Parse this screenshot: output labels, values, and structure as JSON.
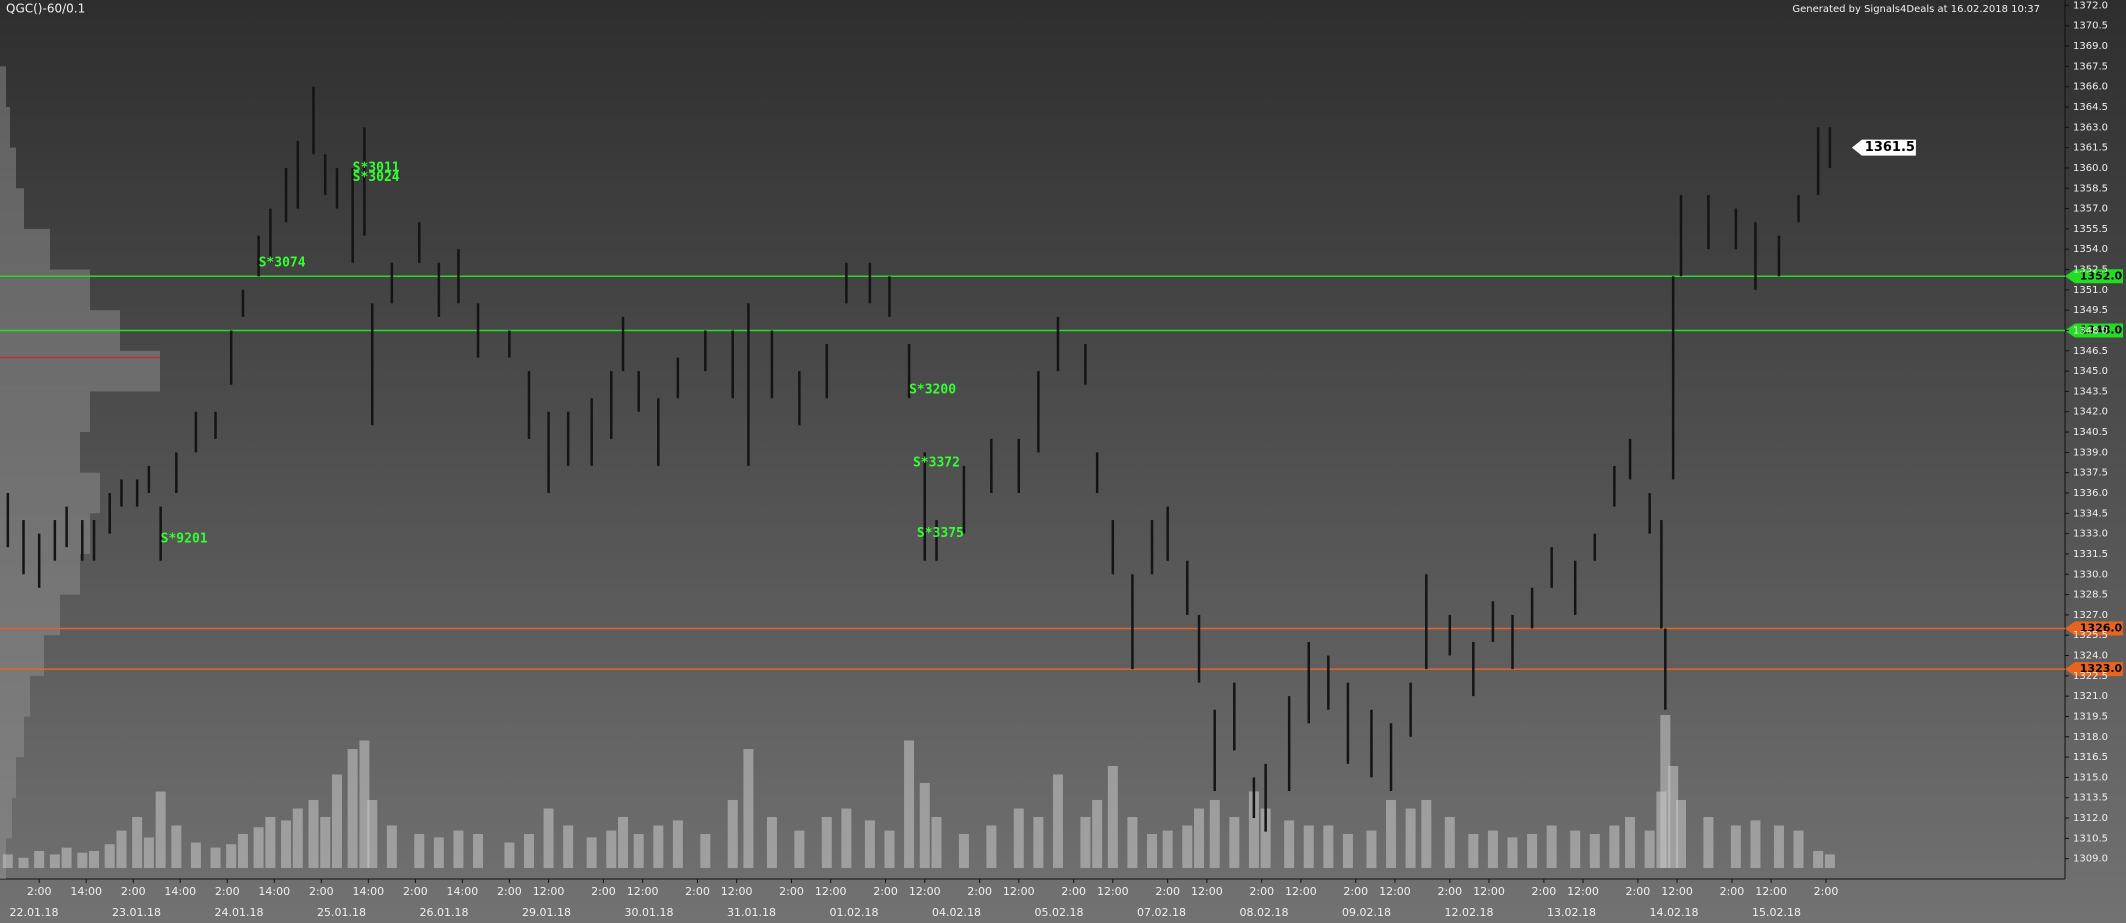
{
  "chart_data": {
    "type": "ohlc",
    "title": "QGC()-60/0.1",
    "subtitle": "Generated by Signals4Deals at 16.02.2018 10:37",
    "bar_color": "#141414",
    "volume_color": "#c8c8c8",
    "profile_color": "#9a9a9a",
    "annotation_color": "#33ff33",
    "xlim": [
      -10,
      517
    ],
    "ylim": [
      1307.5,
      1372.4
    ],
    "volume_lim": [
      0,
      100
    ],
    "profile_lim": [
      0,
      100
    ],
    "bars": {
      "x": [
        -8,
        -4,
        0,
        4,
        7,
        11,
        14,
        18,
        21,
        25,
        28,
        31,
        35,
        40,
        45,
        49,
        52,
        56,
        59,
        63,
        66,
        70,
        73,
        76,
        80,
        83,
        85,
        90,
        97,
        102,
        107,
        112,
        120,
        125,
        130,
        135,
        141,
        146,
        149,
        153,
        158,
        163,
        170,
        177,
        181,
        187,
        194,
        201,
        206,
        212,
        217,
        222,
        226,
        229,
        236,
        243,
        250,
        255,
        260,
        267,
        270,
        274,
        279,
        284,
        288,
        293,
        296,
        300,
        305,
        310,
        313,
        319,
        324,
        329,
        334,
        340,
        345,
        350,
        354,
        360,
        366,
        371,
        376,
        381,
        386,
        392,
        397,
        402,
        406,
        411,
        414,
        415,
        417,
        419,
        426,
        433,
        438,
        444,
        449,
        454,
        457
      ],
      "low": [
        1332,
        1330,
        1329,
        1331,
        1332,
        1331,
        1331,
        1333,
        1335,
        1335,
        1336,
        1331,
        1336,
        1339,
        1340,
        1344,
        1349,
        1352,
        1353,
        1356,
        1357,
        1361,
        1358,
        1357,
        1353,
        1355,
        1341,
        1350,
        1353,
        1349,
        1350,
        1346,
        1346,
        1340,
        1336,
        1338,
        1338,
        1340,
        1345,
        1342,
        1338,
        1343,
        1345,
        1343,
        1338,
        1343,
        1341,
        1343,
        1350,
        1350,
        1349,
        1343,
        1331,
        1331,
        1333,
        1336,
        1336,
        1339,
        1345,
        1344,
        1336,
        1330,
        1323,
        1330,
        1331,
        1327,
        1322,
        1314,
        1317,
        1312,
        1311,
        1314,
        1319,
        1320,
        1316,
        1315,
        1314,
        1318,
        1323,
        1324,
        1321,
        1325,
        1323,
        1326,
        1329,
        1327,
        1331,
        1335,
        1337,
        1333,
        1326,
        1320,
        1337,
        1352,
        1354,
        1354,
        1351,
        1352,
        1356,
        1358,
        1360
      ],
      "high": [
        1336,
        1334,
        1333,
        1334,
        1335,
        1334,
        1334,
        1336,
        1337,
        1337,
        1338,
        1335,
        1339,
        1342,
        1342,
        1348,
        1351,
        1355,
        1357,
        1360,
        1362,
        1366,
        1361,
        1360,
        1360,
        1363,
        1350,
        1353,
        1356,
        1353,
        1354,
        1350,
        1348,
        1345,
        1342,
        1342,
        1343,
        1345,
        1349,
        1345,
        1343,
        1346,
        1348,
        1348,
        1350,
        1348,
        1345,
        1347,
        1353,
        1353,
        1352,
        1347,
        1339,
        1334,
        1338,
        1340,
        1340,
        1345,
        1349,
        1347,
        1339,
        1334,
        1330,
        1334,
        1335,
        1331,
        1327,
        1320,
        1322,
        1315,
        1316,
        1321,
        1325,
        1324,
        1322,
        1320,
        1319,
        1322,
        1330,
        1327,
        1325,
        1328,
        1327,
        1329,
        1332,
        1331,
        1333,
        1338,
        1340,
        1336,
        1334,
        1326,
        1352,
        1358,
        1358,
        1357,
        1356,
        1355,
        1358,
        1363,
        1363
      ],
      "volume": [
        8,
        6,
        10,
        8,
        12,
        9,
        10,
        14,
        22,
        30,
        18,
        45,
        25,
        15,
        12,
        14,
        20,
        24,
        30,
        28,
        35,
        40,
        30,
        55,
        70,
        75,
        40,
        25,
        20,
        18,
        22,
        20,
        15,
        20,
        35,
        25,
        18,
        22,
        30,
        20,
        25,
        28,
        20,
        40,
        70,
        30,
        22,
        30,
        35,
        28,
        22,
        75,
        50,
        30,
        20,
        25,
        35,
        30,
        55,
        30,
        40,
        60,
        30,
        20,
        22,
        25,
        35,
        40,
        30,
        45,
        35,
        28,
        25,
        25,
        20,
        22,
        40,
        35,
        40,
        30,
        20,
        22,
        18,
        20,
        25,
        22,
        20,
        25,
        30,
        22,
        45,
        90,
        60,
        40,
        30,
        25,
        28,
        25,
        22,
        10,
        8
      ]
    },
    "profile": {
      "levels": [
        1309,
        1312,
        1315,
        1318,
        1321,
        1324,
        1327,
        1330,
        1333,
        1336,
        1339,
        1342,
        1345,
        1348,
        1351,
        1354,
        1357,
        1360,
        1363,
        1366
      ],
      "values": [
        3,
        6,
        8,
        12,
        15,
        22,
        30,
        40,
        45,
        50,
        40,
        45,
        80,
        60,
        45,
        25,
        12,
        8,
        5,
        3
      ]
    },
    "poc": {
      "value": 1346,
      "color": "#c03030"
    },
    "levels": [
      {
        "value": 1352,
        "label": "1352.0",
        "color": "#22dd22"
      },
      {
        "value": 1348,
        "label": "1348.0",
        "color": "#22dd22"
      },
      {
        "value": 1326,
        "label": "1326.0",
        "color": "#e8641e"
      },
      {
        "value": 1323,
        "label": "1323.0",
        "color": "#e8641e"
      }
    ],
    "last_price": 1361.5,
    "annotations": [
      {
        "text": "S*9201",
        "x": 31,
        "y": 1332.6
      },
      {
        "text": "S*3074",
        "x": 56,
        "y": 1353
      },
      {
        "text": "S*3011",
        "x": 80,
        "y": 1360
      },
      {
        "text": "S*3024",
        "x": 80,
        "y": 1359.3
      },
      {
        "text": "S*3200",
        "x": 222,
        "y": 1343.6
      },
      {
        "text": "S*3372",
        "x": 223,
        "y": 1338.2
      },
      {
        "text": "S*3375",
        "x": 224,
        "y": 1333
      }
    ],
    "xticks": [
      {
        "value": 0,
        "label": "2:00"
      },
      {
        "value": 12,
        "label": "14:00"
      },
      {
        "value": 24,
        "label": "2:00"
      },
      {
        "value": 36,
        "label": "14:00"
      },
      {
        "value": 48,
        "label": "2:00"
      },
      {
        "value": 60,
        "label": "14:00"
      },
      {
        "value": 72,
        "label": "2:00"
      },
      {
        "value": 84,
        "label": "14:00"
      },
      {
        "value": 96,
        "label": "2:00"
      },
      {
        "value": 108,
        "label": "14:00"
      },
      {
        "value": 120,
        "label": "2:00"
      },
      {
        "value": 130,
        "label": "12:00"
      },
      {
        "value": 144,
        "label": "2:00"
      },
      {
        "value": 154,
        "label": "12:00"
      },
      {
        "value": 168,
        "label": "2:00"
      },
      {
        "value": 178,
        "label": "12:00"
      },
      {
        "value": 192,
        "label": "2:00"
      },
      {
        "value": 202,
        "label": "12:00"
      },
      {
        "value": 216,
        "label": "2:00"
      },
      {
        "value": 226,
        "label": "12:00"
      },
      {
        "value": 240,
        "label": "2:00"
      },
      {
        "value": 250,
        "label": "12:00"
      },
      {
        "value": 264,
        "label": "2:00"
      },
      {
        "value": 274,
        "label": "12:00"
      },
      {
        "value": 288,
        "label": "2:00"
      },
      {
        "value": 298,
        "label": "12:00"
      },
      {
        "value": 312,
        "label": "2:00"
      },
      {
        "value": 322,
        "label": "12:00"
      },
      {
        "value": 336,
        "label": "2:00"
      },
      {
        "value": 346,
        "label": "12:00"
      },
      {
        "value": 360,
        "label": "2:00"
      },
      {
        "value": 370,
        "label": "12:00"
      },
      {
        "value": 384,
        "label": "2:00"
      },
      {
        "value": 394,
        "label": "12:00"
      },
      {
        "value": 408,
        "label": "2:00"
      },
      {
        "value": 418,
        "label": "12:00"
      },
      {
        "value": 432,
        "label": "2:00"
      },
      {
        "value": 442,
        "label": "12:00"
      },
      {
        "value": 456,
        "label": "2:00"
      }
    ],
    "dates": [
      "22.01.18",
      "23.01.18",
      "24.01.18",
      "25.01.18",
      "26.01.18",
      "29.01.18",
      "30.01.18",
      "31.01.18",
      "01.02.18",
      "04.02.18",
      "05.02.18",
      "07.02.18",
      "08.02.18",
      "09.02.18",
      "12.02.18",
      "13.02.18",
      "14.02.18",
      "15.02.18"
    ],
    "yticks": [
      {
        "value": 1309,
        "label": "1309.0"
      },
      {
        "value": 1310.5,
        "label": "1310.5"
      },
      {
        "value": 1312,
        "label": "1312.0"
      },
      {
        "value": 1313.5,
        "label": "1313.5"
      },
      {
        "value": 1315,
        "label": "1315.0"
      },
      {
        "value": 1316.5,
        "label": "1316.5"
      },
      {
        "value": 1318,
        "label": "1318.0"
      },
      {
        "value": 1319.5,
        "label": "1319.5"
      },
      {
        "value": 1321,
        "label": "1321.0"
      },
      {
        "value": 1322.5,
        "label": "1322.5"
      },
      {
        "value": 1324,
        "label": "1324.0"
      },
      {
        "value": 1325.5,
        "label": "1325.5"
      },
      {
        "value": 1327,
        "label": "1327.0"
      },
      {
        "value": 1328.5,
        "label": "1328.5"
      },
      {
        "value": 1330,
        "label": "1330.0"
      },
      {
        "value": 1331.5,
        "label": "1331.5"
      },
      {
        "value": 1333,
        "label": "1333.0"
      },
      {
        "value": 1334.5,
        "label": "1334.5"
      },
      {
        "value": 1336,
        "label": "1336.0"
      },
      {
        "value": 1337.5,
        "label": "1337.5"
      },
      {
        "value": 1339,
        "label": "1339.0"
      },
      {
        "value": 1340.5,
        "label": "1340.5"
      },
      {
        "value": 1342,
        "label": "1342.0"
      },
      {
        "value": 1343.5,
        "label": "1343.5"
      },
      {
        "value": 1345,
        "label": "1345.0"
      },
      {
        "value": 1346.5,
        "label": "1346.5"
      },
      {
        "value": 1348,
        "label": "1348.0"
      },
      {
        "value": 1349.5,
        "label": "1349.5"
      },
      {
        "value": 1351,
        "label": "1351.0"
      },
      {
        "value": 1352.5,
        "label": "1352.5"
      },
      {
        "value": 1354,
        "label": "1354.0"
      },
      {
        "value": 1355.5,
        "label": "1355.5"
      },
      {
        "value": 1357,
        "label": "1357.0"
      },
      {
        "value": 1358.5,
        "label": "1358.5"
      },
      {
        "value": 1360,
        "label": "1360.0"
      },
      {
        "value": 1361.5,
        "label": "1361.5"
      },
      {
        "value": 1363,
        "label": "1363.0"
      },
      {
        "value": 1364.5,
        "label": "1364.5"
      },
      {
        "value": 1366,
        "label": "1366.0"
      },
      {
        "value": 1367.5,
        "label": "1367.5"
      },
      {
        "value": 1369,
        "label": "1369.0"
      },
      {
        "value": 1370.5,
        "label": "1370.5"
      },
      {
        "value": 1372,
        "label": "1372.0"
      }
    ]
  }
}
